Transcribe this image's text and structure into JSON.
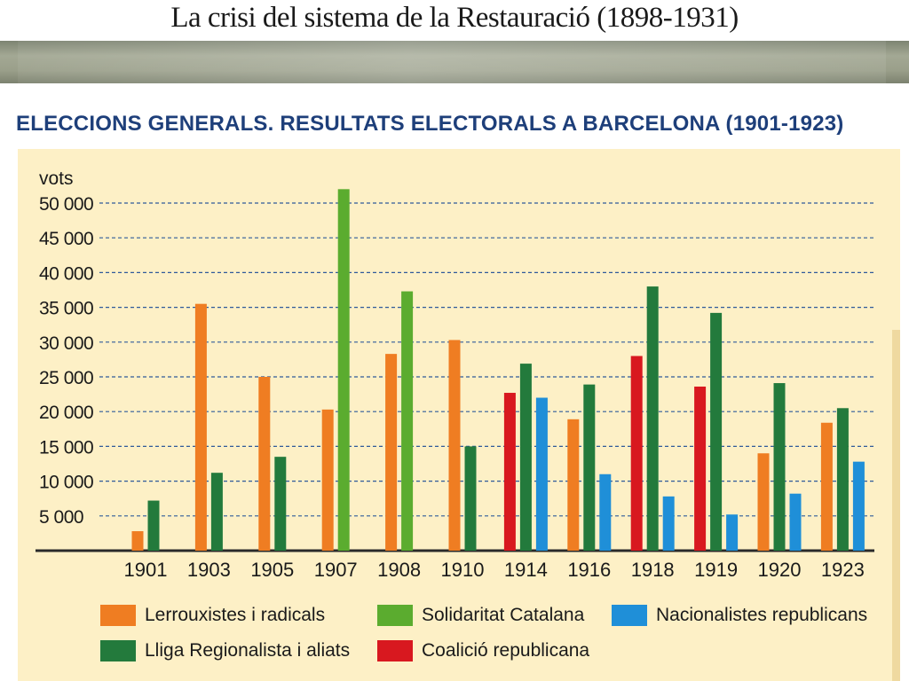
{
  "slide_title": "La crisi del sistema de la Restauració (1898-1931)",
  "colors": {
    "lerrouxistes": "#ef7d22",
    "lliga": "#237a3c",
    "solidaritat": "#5bac2f",
    "coalicio": "#d8181f",
    "nacionalistes": "#1f8fd8"
  },
  "chart_data": {
    "type": "bar",
    "title": "ELECCIONS GENERALS. RESULTATS ELECTORALS A BARCELONA (1901-1923)",
    "ylabel": "vots",
    "ylim": [
      0,
      50000
    ],
    "yticks": [
      {
        "value": 5000,
        "label": "5 000"
      },
      {
        "value": 10000,
        "label": "10 000"
      },
      {
        "value": 15000,
        "label": "15 000"
      },
      {
        "value": 20000,
        "label": "20 000"
      },
      {
        "value": 25000,
        "label": "25 000"
      },
      {
        "value": 30000,
        "label": "30 000"
      },
      {
        "value": 35000,
        "label": "35 000"
      },
      {
        "value": 40000,
        "label": "40 000"
      },
      {
        "value": 45000,
        "label": "45 000"
      },
      {
        "value": 50000,
        "label": "50 000"
      }
    ],
    "grid": true,
    "legend_position": "bottom",
    "categories": [
      "1901",
      "1903",
      "1905",
      "1907",
      "1908",
      "1910",
      "1914",
      "1916",
      "1918",
      "1919",
      "1920",
      "1923"
    ],
    "series": [
      {
        "name": "Lerrouxistes i radicals",
        "color": "#ef7d22",
        "values": [
          2800,
          35500,
          25000,
          20300,
          28300,
          30300,
          null,
          18900,
          null,
          null,
          14000,
          18400
        ]
      },
      {
        "name": "Solidaritat Catalana",
        "color": "#5bac2f",
        "values": [
          null,
          null,
          null,
          52000,
          37300,
          null,
          null,
          null,
          null,
          null,
          null,
          null
        ]
      },
      {
        "name": "Nacionalistes republicans",
        "color": "#1f8fd8",
        "values": [
          null,
          null,
          null,
          null,
          null,
          null,
          22000,
          11000,
          7800,
          5200,
          8200,
          12800
        ]
      },
      {
        "name": "Lliga Regionalista i aliats",
        "color": "#237a3c",
        "values": [
          7200,
          11200,
          13500,
          null,
          null,
          15000,
          26900,
          23900,
          38000,
          34200,
          24100,
          20500
        ]
      },
      {
        "name": "Coalició republicana",
        "color": "#d8181f",
        "values": [
          null,
          null,
          null,
          null,
          null,
          null,
          22700,
          null,
          28000,
          23600,
          null,
          null
        ]
      }
    ],
    "bar_order": [
      "Lerrouxistes i radicals",
      "Coalició republicana",
      "Lliga Regionalista i aliats",
      "Solidaritat Catalana",
      "Nacionalistes republicans"
    ]
  }
}
